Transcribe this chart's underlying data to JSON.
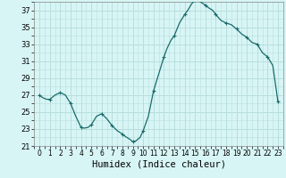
{
  "title": "",
  "xlabel": "Humidex (Indice chaleur)",
  "ylabel": "",
  "background_color": "#d8f5f5",
  "grid_color": "#b8dede",
  "line_color": "#1a6b6b",
  "marker_color": "#1a6b6b",
  "xlim": [
    -0.5,
    23.5
  ],
  "ylim": [
    21,
    38
  ],
  "yticks": [
    21,
    23,
    25,
    27,
    29,
    31,
    33,
    35,
    37
  ],
  "xticks": [
    0,
    1,
    2,
    3,
    4,
    5,
    6,
    7,
    8,
    9,
    10,
    11,
    12,
    13,
    14,
    15,
    16,
    17,
    18,
    19,
    20,
    21,
    22,
    23
  ],
  "x_detail": [
    0,
    0.3,
    0.7,
    1.0,
    1.5,
    2.0,
    2.5,
    3.0,
    3.5,
    4.0,
    4.3,
    4.7,
    5.0,
    5.5,
    6.0,
    6.5,
    7.0,
    7.5,
    8.0,
    8.3,
    8.7,
    9.0,
    9.3,
    9.7,
    10.0,
    10.5,
    11.0,
    11.5,
    12.0,
    12.3,
    12.7,
    13.0,
    13.5,
    14.0,
    14.3,
    14.7,
    15.0,
    15.1,
    15.3,
    15.5,
    16.0,
    16.3,
    16.7,
    17.0,
    17.5,
    18.0,
    18.5,
    19.0,
    19.5,
    20.0,
    20.5,
    21.0,
    21.5,
    22.0,
    22.5,
    23.0
  ],
  "y_detail": [
    27.0,
    26.7,
    26.5,
    26.5,
    27.0,
    27.3,
    27.0,
    26.0,
    24.5,
    23.2,
    23.1,
    23.2,
    23.5,
    24.5,
    24.8,
    24.2,
    23.4,
    22.8,
    22.4,
    22.1,
    21.8,
    21.5,
    21.6,
    22.0,
    22.8,
    24.5,
    27.5,
    29.5,
    31.5,
    32.5,
    33.5,
    34.0,
    35.5,
    36.5,
    37.0,
    37.8,
    38.2,
    38.3,
    38.2,
    38.0,
    37.6,
    37.3,
    37.0,
    36.5,
    35.8,
    35.5,
    35.3,
    34.8,
    34.2,
    33.8,
    33.2,
    33.0,
    32.0,
    31.5,
    30.5,
    26.2
  ],
  "x_markers": [
    0,
    1,
    2,
    3,
    4,
    5,
    6,
    7,
    8,
    9,
    10,
    11,
    12,
    13,
    14,
    15,
    16,
    17,
    18,
    19,
    20,
    21,
    22,
    23
  ],
  "y_markers": [
    27.0,
    26.5,
    27.3,
    26.0,
    23.2,
    23.5,
    24.8,
    23.4,
    22.4,
    21.5,
    22.8,
    27.5,
    31.5,
    34.0,
    36.5,
    38.2,
    37.6,
    36.5,
    35.5,
    34.8,
    33.8,
    33.0,
    31.5,
    26.2
  ]
}
